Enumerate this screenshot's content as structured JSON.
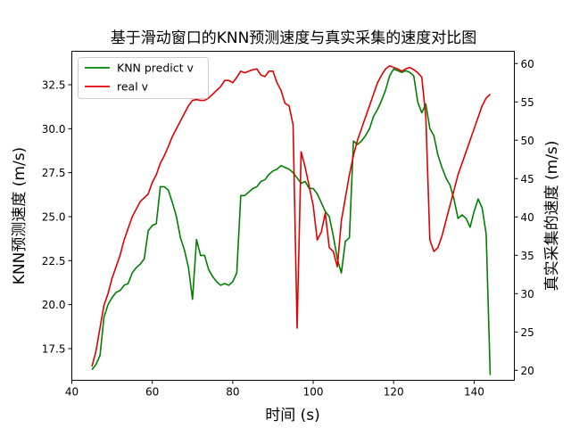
{
  "chart_data": {
    "type": "line",
    "title": "基于滑动窗口的KNN预测速度与真实采集的速度对比图",
    "xlabel": "时间 (s)",
    "ylabel_left": "KNN预测速度 (m/s)",
    "ylabel_right": "真实采集的速度 (m/s)",
    "xlim": [
      40,
      150
    ],
    "ylim_left": [
      15.7,
      34.4
    ],
    "ylim_right": [
      18.7,
      61.6
    ],
    "x_ticks": [
      "40",
      "60",
      "80",
      "100",
      "120",
      "140"
    ],
    "left_ticks": [
      "17.5",
      "20.0",
      "22.5",
      "25.0",
      "27.5",
      "30.0",
      "32.5"
    ],
    "right_ticks": [
      "20",
      "25",
      "30",
      "35",
      "40",
      "45",
      "50",
      "55",
      "60"
    ],
    "grid": false,
    "legend_position": "top-left",
    "series": [
      {
        "name": "KNN predict v",
        "axis": "left",
        "color": "#008000",
        "points": [
          [
            45,
            16.3
          ],
          [
            46,
            16.6
          ],
          [
            47,
            17.1
          ],
          [
            48,
            19.3
          ],
          [
            49,
            20.0
          ],
          [
            50,
            20.4
          ],
          [
            51,
            20.7
          ],
          [
            52,
            20.8
          ],
          [
            53,
            21.1
          ],
          [
            54,
            21.2
          ],
          [
            55,
            21.8
          ],
          [
            56,
            22.1
          ],
          [
            57,
            22.3
          ],
          [
            58,
            22.6
          ],
          [
            59,
            24.2
          ],
          [
            60,
            24.5
          ],
          [
            61,
            24.6
          ],
          [
            62,
            26.7
          ],
          [
            63,
            26.7
          ],
          [
            64,
            26.5
          ],
          [
            65,
            25.8
          ],
          [
            66,
            25.0
          ],
          [
            67,
            23.8
          ],
          [
            68,
            23.1
          ],
          [
            69,
            22.1
          ],
          [
            70,
            20.3
          ],
          [
            71,
            23.7
          ],
          [
            72,
            22.8
          ],
          [
            73,
            22.8
          ],
          [
            74,
            22.0
          ],
          [
            75,
            21.6
          ],
          [
            76,
            21.3
          ],
          [
            77,
            21.1
          ],
          [
            78,
            21.2
          ],
          [
            79,
            21.1
          ],
          [
            80,
            21.3
          ],
          [
            81,
            21.8
          ],
          [
            82,
            26.2
          ],
          [
            83,
            26.2
          ],
          [
            84,
            26.4
          ],
          [
            85,
            26.6
          ],
          [
            86,
            26.7
          ],
          [
            87,
            27.0
          ],
          [
            88,
            27.1
          ],
          [
            89,
            27.4
          ],
          [
            90,
            27.6
          ],
          [
            91,
            27.7
          ],
          [
            92,
            27.9
          ],
          [
            93,
            27.8
          ],
          [
            94,
            27.7
          ],
          [
            95,
            27.5
          ],
          [
            96,
            27.2
          ],
          [
            97,
            26.9
          ],
          [
            98,
            27.0
          ],
          [
            99,
            26.6
          ],
          [
            100,
            26.6
          ],
          [
            101,
            26.3
          ],
          [
            102,
            25.8
          ],
          [
            103,
            25.3
          ],
          [
            104,
            25.0
          ],
          [
            105,
            23.9
          ],
          [
            106,
            22.6
          ],
          [
            107,
            21.8
          ],
          [
            108,
            23.6
          ],
          [
            109,
            23.8
          ],
          [
            110,
            29.3
          ],
          [
            111,
            29.1
          ],
          [
            112,
            29.3
          ],
          [
            113,
            29.6
          ],
          [
            114,
            30.0
          ],
          [
            115,
            30.7
          ],
          [
            116,
            31.1
          ],
          [
            117,
            31.6
          ],
          [
            118,
            32.2
          ],
          [
            119,
            33.0
          ],
          [
            120,
            33.4
          ],
          [
            121,
            33.3
          ],
          [
            122,
            33.2
          ],
          [
            123,
            33.3
          ],
          [
            124,
            33.2
          ],
          [
            125,
            33.0
          ],
          [
            126,
            31.5
          ],
          [
            127,
            30.9
          ],
          [
            128,
            31.4
          ],
          [
            129,
            30.0
          ],
          [
            130,
            29.6
          ],
          [
            131,
            28.5
          ],
          [
            132,
            27.8
          ],
          [
            133,
            27.2
          ],
          [
            134,
            26.8
          ],
          [
            135,
            26.0
          ],
          [
            136,
            24.9
          ],
          [
            137,
            25.1
          ],
          [
            138,
            24.9
          ],
          [
            139,
            24.4
          ],
          [
            140,
            25.3
          ],
          [
            141,
            26.0
          ],
          [
            142,
            25.5
          ],
          [
            143,
            24.0
          ],
          [
            144,
            16.0
          ]
        ]
      },
      {
        "name": "real v",
        "axis": "right",
        "color": "#e00000",
        "points": [
          [
            45,
            20.5
          ],
          [
            46,
            22.5
          ],
          [
            47,
            25.5
          ],
          [
            48,
            28.5
          ],
          [
            49,
            30.0
          ],
          [
            50,
            32.0
          ],
          [
            51,
            33.5
          ],
          [
            52,
            35.0
          ],
          [
            53,
            37.0
          ],
          [
            54,
            38.5
          ],
          [
            55,
            40.0
          ],
          [
            56,
            41.0
          ],
          [
            57,
            42.0
          ],
          [
            58,
            42.5
          ],
          [
            59,
            43.0
          ],
          [
            60,
            44.5
          ],
          [
            61,
            45.5
          ],
          [
            62,
            47.0
          ],
          [
            63,
            48.0
          ],
          [
            64,
            49.2
          ],
          [
            65,
            50.5
          ],
          [
            66,
            51.5
          ],
          [
            67,
            52.5
          ],
          [
            68,
            53.5
          ],
          [
            69,
            54.5
          ],
          [
            70,
            55.2
          ],
          [
            71,
            55.3
          ],
          [
            72,
            55.2
          ],
          [
            73,
            55.2
          ],
          [
            74,
            55.5
          ],
          [
            75,
            56.0
          ],
          [
            76,
            56.5
          ],
          [
            77,
            57.0
          ],
          [
            78,
            57.8
          ],
          [
            79,
            57.8
          ],
          [
            80,
            57.5
          ],
          [
            81,
            58.2
          ],
          [
            82,
            59.0
          ],
          [
            83,
            58.8
          ],
          [
            84,
            59.0
          ],
          [
            85,
            59.2
          ],
          [
            86,
            59.3
          ],
          [
            87,
            58.5
          ],
          [
            88,
            58.3
          ],
          [
            89,
            59.0
          ],
          [
            90,
            59.0
          ],
          [
            91,
            57.5
          ],
          [
            92,
            56.5
          ],
          [
            93,
            54.8
          ],
          [
            94,
            54.5
          ],
          [
            95,
            52.0
          ],
          [
            96,
            25.5
          ],
          [
            97,
            48.5
          ],
          [
            98,
            46.5
          ],
          [
            99,
            44.0
          ],
          [
            100,
            41.5
          ],
          [
            101,
            37.0
          ],
          [
            102,
            38.0
          ],
          [
            103,
            40.5
          ],
          [
            104,
            36.0
          ],
          [
            105,
            35.5
          ],
          [
            106,
            33.5
          ],
          [
            107,
            39.5
          ],
          [
            108,
            42.5
          ],
          [
            109,
            45.5
          ],
          [
            110,
            48.0
          ],
          [
            111,
            50.0
          ],
          [
            112,
            51.5
          ],
          [
            113,
            53.0
          ],
          [
            114,
            54.5
          ],
          [
            115,
            56.0
          ],
          [
            116,
            57.5
          ],
          [
            117,
            58.5
          ],
          [
            118,
            59.3
          ],
          [
            119,
            59.7
          ],
          [
            120,
            59.5
          ],
          [
            121,
            59.3
          ],
          [
            122,
            59.0
          ],
          [
            123,
            59.3
          ],
          [
            124,
            59.5
          ],
          [
            125,
            59.2
          ],
          [
            126,
            58.8
          ],
          [
            127,
            58.2
          ],
          [
            128,
            53.0
          ],
          [
            129,
            37.0
          ],
          [
            130,
            35.5
          ],
          [
            131,
            36.0
          ],
          [
            132,
            37.5
          ],
          [
            133,
            39.5
          ],
          [
            134,
            41.5
          ],
          [
            135,
            43.5
          ],
          [
            136,
            45.5
          ],
          [
            137,
            47.0
          ],
          [
            138,
            48.5
          ],
          [
            139,
            50.0
          ],
          [
            140,
            51.5
          ],
          [
            141,
            53.0
          ],
          [
            142,
            54.5
          ],
          [
            143,
            55.5
          ],
          [
            144,
            56.0
          ]
        ]
      }
    ]
  }
}
